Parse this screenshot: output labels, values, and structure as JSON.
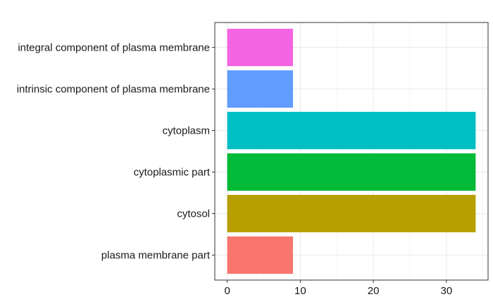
{
  "chart_data": {
    "type": "bar",
    "orientation": "horizontal",
    "title": "",
    "xlabel": "",
    "ylabel": "",
    "categories": [
      "plasma membrane part",
      "cytosol",
      "cytoplasmic part",
      "cytoplasm",
      "intrinsic component of plasma membrane",
      "integral component of plasma membrane"
    ],
    "values": [
      9,
      34,
      34,
      34,
      9,
      9
    ],
    "colors": [
      "#F8766D",
      "#B79F00",
      "#00BA38",
      "#00BFC4",
      "#619CFF",
      "#F564E3"
    ],
    "x_ticks": [
      "0",
      "10",
      "20",
      "30"
    ],
    "x_tick_values": [
      0,
      10,
      20,
      30
    ],
    "xlim": [
      -1.7,
      35.7
    ],
    "grid": true,
    "legend": "none",
    "theme": "bw"
  }
}
